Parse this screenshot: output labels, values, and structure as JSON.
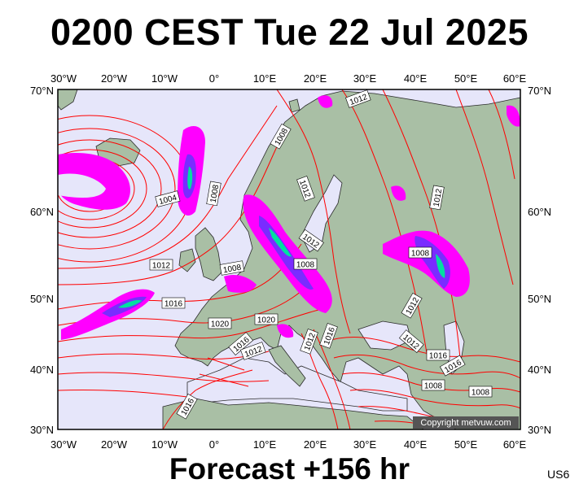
{
  "title": "0200 CEST Tue 22 Jul 2025",
  "footer": "Forecast +156 hr",
  "model_code": "US6",
  "copyright": "Copyright metvuw.com",
  "lon_ticks": [
    "30°W",
    "20°W",
    "10°W",
    "0°",
    "10°E",
    "20°E",
    "30°E",
    "40°E",
    "50°E",
    "60°E"
  ],
  "lat_ticks": [
    "70°N",
    "60°N",
    "50°N",
    "40°N",
    "30°N"
  ],
  "isobar_labels": [
    "1012",
    "1008",
    "1004",
    "1008",
    "1012",
    "1012",
    "1008",
    "1016",
    "1020",
    "1020",
    "1016",
    "1012",
    "1012",
    "1008",
    "1012",
    "1016",
    "1012",
    "1016",
    "1008",
    "1008",
    "1016",
    "1008",
    "1012",
    "1012",
    "1016"
  ],
  "colors": {
    "ocean": "#e6e6fa",
    "land": "#a9bfa5",
    "isobar": "#ff0000",
    "precip_outer": "#ff00ff",
    "precip_mid": "#7a2cff",
    "precip_inner": "#00e0a0"
  }
}
